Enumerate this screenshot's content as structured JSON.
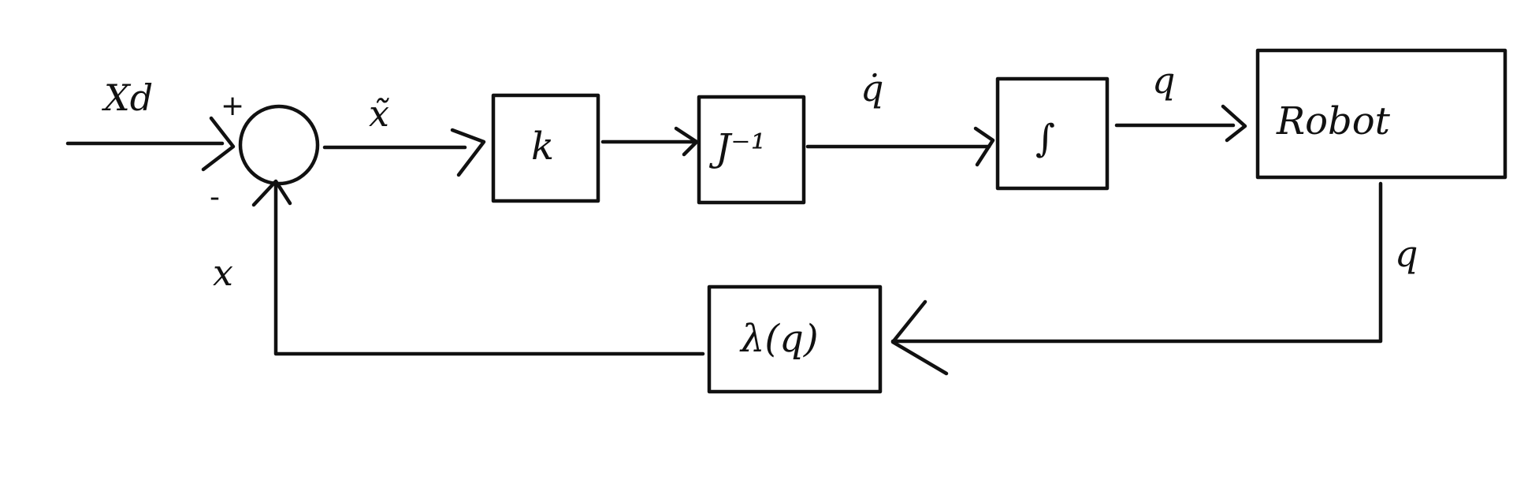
{
  "diagram": {
    "input_label": "Xd",
    "sum_plus": "+",
    "sum_minus": "-",
    "error_label": "x̃",
    "gain_block": "k",
    "inverse_jacobian_block": "J⁻¹",
    "joint_velocity_label": "q̇",
    "integrator_block": "∫",
    "joint_position_label": "q",
    "plant_block": "Robot",
    "output_label": "q",
    "forward_kinematics_block": "λ(q)",
    "feedback_label": "x"
  }
}
